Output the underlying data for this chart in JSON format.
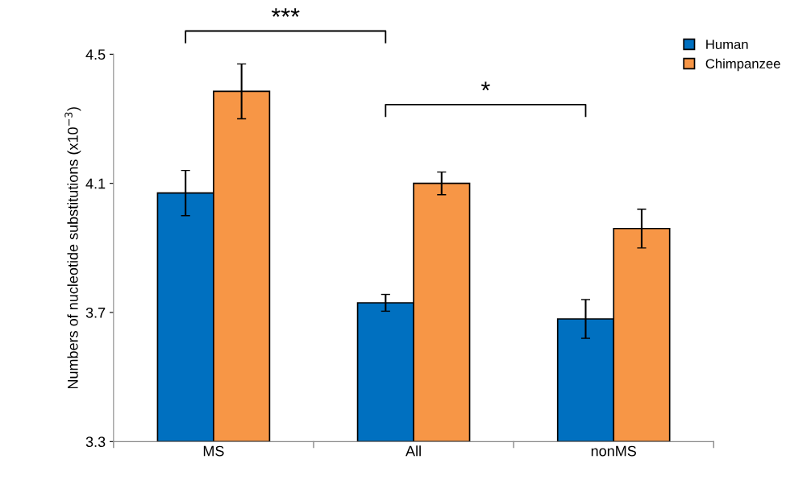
{
  "chart_data": {
    "type": "bar",
    "ylabel": "Numbers of nucleotide substitutions (x10$^{−3}$)",
    "categories": [
      "MS",
      "All",
      "nonMS"
    ],
    "series": [
      {
        "name": "Human",
        "color": "#0070c0",
        "values": [
          4.07,
          3.73,
          3.68
        ],
        "errors": [
          0.07,
          0.026,
          0.06
        ]
      },
      {
        "name": "Chimpanzee",
        "color": "#f79646",
        "values": [
          4.385,
          4.1,
          3.96
        ],
        "errors": [
          0.085,
          0.035,
          0.06
        ]
      }
    ],
    "ylim": [
      3.3,
      4.5
    ],
    "yticks": [
      3.3,
      3.7,
      4.1,
      4.5
    ],
    "grid": false,
    "legend": "top right",
    "annotations": [
      "***",
      "*"
    ]
  }
}
